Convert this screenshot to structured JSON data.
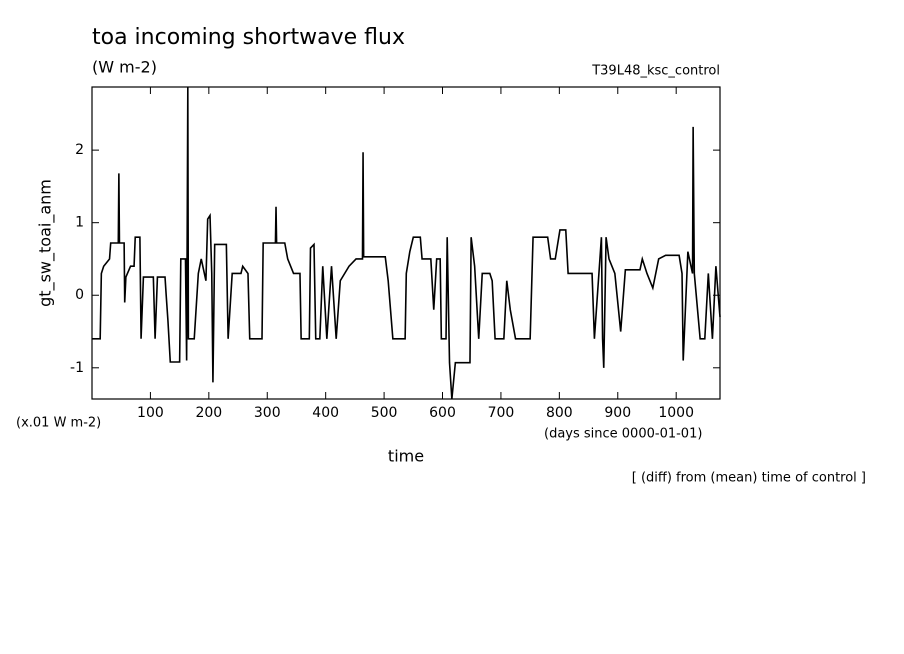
{
  "chart_data": {
    "type": "line",
    "title": "toa incoming shortwave flux",
    "subtitle": "(W m-2)",
    "annotation_right": "T39L48_ksc_control",
    "ylabel": "gt_sw_toai_anm",
    "yunits": "(x.01 W m-2)",
    "xunits": "(days since 0000-01-01)",
    "xlabel": "time",
    "footnote": "[ (diff) from (mean) time of control ]",
    "xlim": [
      0,
      1075
    ],
    "ylim": [
      -1.43,
      2.87
    ],
    "xticks": [
      100,
      200,
      300,
      400,
      500,
      600,
      700,
      800,
      900,
      1000
    ],
    "yticks": [
      -1,
      0,
      1,
      2
    ],
    "color": "#000000",
    "x": [
      0,
      14,
      16,
      20,
      25,
      30,
      32,
      45,
      46,
      47,
      55,
      56,
      58,
      66,
      72,
      74,
      82,
      84,
      88,
      105,
      108,
      112,
      125,
      127,
      130,
      134,
      150,
      152,
      160,
      162,
      164,
      165,
      175,
      182,
      187,
      195,
      198,
      202,
      205,
      207,
      210,
      230,
      233,
      240,
      255,
      258,
      267,
      270,
      291,
      293,
      314,
      315,
      316,
      330,
      335,
      345,
      356,
      358,
      372,
      374,
      380,
      383,
      390,
      395,
      402,
      410,
      418,
      425,
      440,
      452,
      463,
      464,
      465,
      502,
      507,
      515,
      536,
      538,
      544,
      550,
      562,
      565,
      580,
      585,
      590,
      596,
      598,
      606,
      608,
      612,
      616,
      622,
      647,
      649,
      655,
      662,
      668,
      681,
      685,
      690,
      705,
      710,
      716,
      725,
      750,
      755,
      780,
      785,
      793,
      801,
      811,
      815,
      856,
      860,
      872,
      874,
      876,
      880,
      885,
      895,
      905,
      913,
      938,
      942,
      950,
      960,
      970,
      982,
      1005,
      1010,
      1012,
      1020,
      1028,
      1029,
      1031,
      1041,
      1049,
      1055,
      1062,
      1068,
      1075
    ],
    "values": [
      -0.6,
      -0.6,
      0.3,
      0.4,
      0.45,
      0.5,
      0.72,
      0.72,
      1.68,
      0.72,
      0.72,
      -0.1,
      0.25,
      0.4,
      0.4,
      0.8,
      0.8,
      -0.6,
      0.25,
      0.25,
      -0.6,
      0.25,
      0.25,
      0,
      -0.35,
      -0.92,
      -0.92,
      0.5,
      0.5,
      -0.9,
      2.87,
      -0.6,
      -0.6,
      0.3,
      0.5,
      0.2,
      1.05,
      1.1,
      0.3,
      -1.2,
      0.7,
      0.7,
      -0.6,
      0.3,
      0.3,
      0.4,
      0.3,
      -0.6,
      -0.6,
      0.72,
      0.72,
      1.22,
      0.72,
      0.72,
      0.5,
      0.3,
      0.3,
      -0.6,
      -0.6,
      0.65,
      0.7,
      -0.6,
      -0.6,
      0.4,
      -0.6,
      0.4,
      -0.6,
      0.2,
      0.4,
      0.5,
      0.5,
      1.97,
      0.53,
      0.53,
      0.2,
      -0.6,
      -0.6,
      0.3,
      0.6,
      0.8,
      0.8,
      0.5,
      0.5,
      -0.2,
      0.5,
      0.5,
      -0.6,
      -0.6,
      0.8,
      -0.93,
      -1.43,
      -0.93,
      -0.93,
      0.8,
      0.4,
      -0.6,
      0.3,
      0.3,
      0.2,
      -0.6,
      -0.6,
      0.2,
      -0.2,
      -0.6,
      -0.6,
      0.8,
      0.8,
      0.5,
      0.5,
      0.9,
      0.9,
      0.3,
      0.3,
      -0.6,
      0.8,
      -0.6,
      -1.0,
      0.8,
      0.5,
      0.3,
      -0.5,
      0.35,
      0.35,
      0.5,
      0.3,
      0.1,
      0.5,
      0.55,
      0.55,
      0.3,
      -0.9,
      0.6,
      0.3,
      2.32,
      0.3,
      -0.6,
      -0.6,
      0.3,
      -0.6,
      0.4,
      -0.3
    ]
  }
}
